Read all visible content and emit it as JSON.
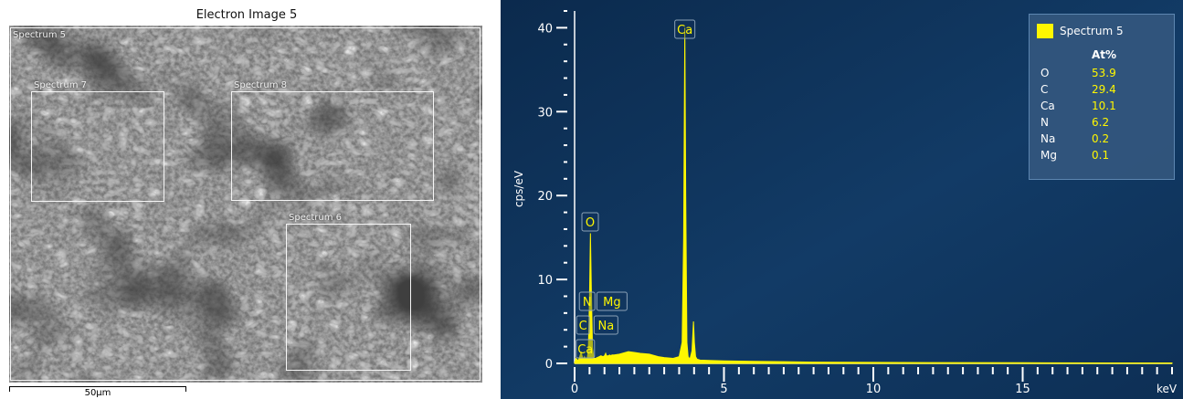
{
  "electron_image": {
    "title": "Electron Image 5",
    "scale_bar_label": "50µm",
    "regions": [
      {
        "label": "Spectrum 5"
      },
      {
        "label": "Spectrum 7"
      },
      {
        "label": "Spectrum 8"
      },
      {
        "label": "Spectrum 6"
      }
    ]
  },
  "legend": {
    "series_name": "Spectrum 5",
    "column_header": "At%",
    "rows": [
      {
        "element": "O",
        "value": "53.9"
      },
      {
        "element": "C",
        "value": "29.4"
      },
      {
        "element": "Ca",
        "value": "10.1"
      },
      {
        "element": "N",
        "value": "6.2"
      },
      {
        "element": "Na",
        "value": "0.2"
      },
      {
        "element": "Mg",
        "value": "0.1"
      }
    ]
  },
  "chart_data": {
    "type": "line",
    "title": "",
    "xlabel": "keV",
    "ylabel": "cps/eV",
    "xlim": [
      0,
      20
    ],
    "ylim": [
      0,
      42
    ],
    "x_ticks": [
      0,
      5,
      10,
      15
    ],
    "y_ticks": [
      0,
      10,
      20,
      30,
      40
    ],
    "grid": false,
    "legend_position": "top-right",
    "background_color": "#0f3560",
    "series_color": "#fff700",
    "series": [
      {
        "name": "Spectrum 5",
        "x": [
          0.0,
          0.05,
          0.12,
          0.18,
          0.22,
          0.25,
          0.28,
          0.3,
          0.33,
          0.36,
          0.39,
          0.42,
          0.46,
          0.5,
          0.53,
          0.56,
          0.6,
          0.65,
          0.7,
          0.76,
          0.82,
          0.88,
          0.95,
          1.0,
          1.04,
          1.07,
          1.12,
          1.18,
          1.22,
          1.25,
          1.3,
          1.5,
          1.8,
          2.0,
          2.2,
          2.5,
          2.8,
          3.0,
          3.3,
          3.5,
          3.6,
          3.65,
          3.69,
          3.72,
          3.76,
          3.8,
          3.86,
          3.93,
          3.98,
          4.01,
          4.05,
          4.1,
          4.2,
          4.5,
          5.0,
          6.0,
          7.0,
          8.0,
          10.0,
          12.0,
          15.0,
          18.0,
          20.0
        ],
        "y": [
          0.1,
          0.6,
          0.3,
          0.9,
          1.4,
          0.9,
          0.6,
          0.5,
          0.8,
          0.6,
          0.5,
          0.6,
          1.5,
          8.0,
          15.5,
          9.0,
          1.8,
          0.6,
          0.6,
          0.7,
          0.8,
          0.9,
          0.8,
          0.9,
          1.2,
          0.9,
          0.9,
          1.0,
          0.9,
          1.0,
          1.0,
          1.1,
          1.4,
          1.3,
          1.2,
          1.1,
          0.8,
          0.7,
          0.6,
          0.8,
          2.5,
          15.0,
          40.0,
          20.0,
          2.5,
          0.8,
          0.5,
          1.5,
          5.0,
          2.5,
          0.8,
          0.5,
          0.4,
          0.35,
          0.3,
          0.25,
          0.2,
          0.15,
          0.12,
          0.1,
          0.08,
          0.05,
          0.05
        ]
      }
    ],
    "peak_labels": [
      {
        "label": "Ca",
        "x": 3.69
      },
      {
        "label": "O",
        "x": 0.525
      },
      {
        "label": "N",
        "x": 0.39
      },
      {
        "label": "Mg",
        "x": 1.25
      },
      {
        "label": "C",
        "x": 0.28
      },
      {
        "label": "Na",
        "x": 1.04
      },
      {
        "label": "Ca",
        "x": 0.34
      }
    ]
  }
}
